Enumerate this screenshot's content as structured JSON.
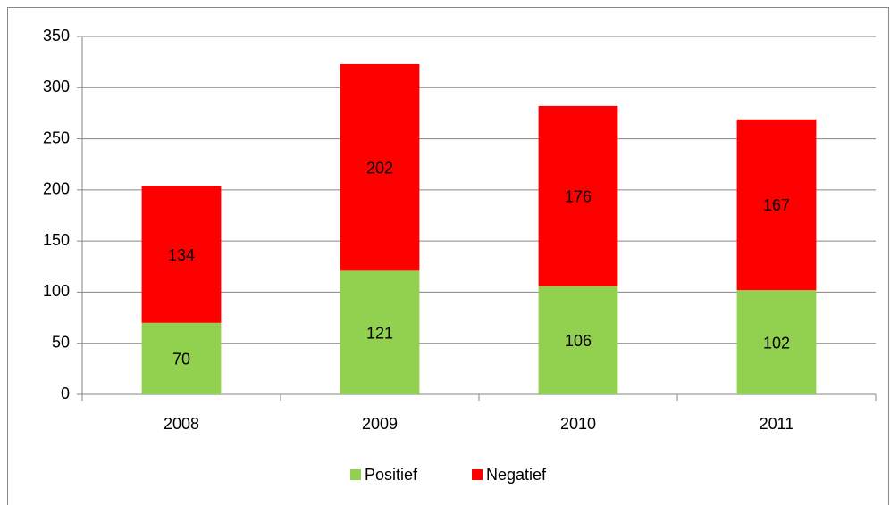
{
  "chart_data": {
    "type": "stacked_bar",
    "categories": [
      "2008",
      "2009",
      "2010",
      "2011"
    ],
    "series": [
      {
        "name": "Positief",
        "color": "#92d050",
        "values": [
          70,
          121,
          106,
          102
        ]
      },
      {
        "name": "Negatief",
        "color": "#ff0000",
        "values": [
          134,
          202,
          176,
          167
        ]
      }
    ],
    "ylim": [
      0,
      350
    ],
    "yticks": [
      0,
      50,
      100,
      150,
      200,
      250,
      300,
      350
    ],
    "grid": true,
    "legend": "bottom"
  }
}
